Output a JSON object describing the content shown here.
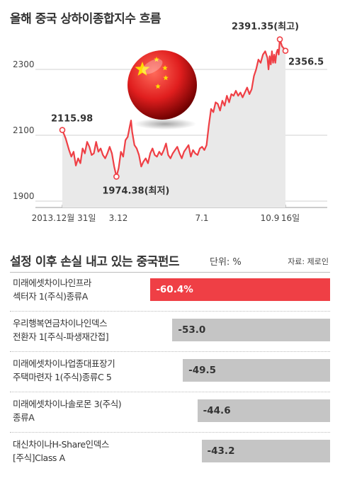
{
  "header": {
    "chart_title": "올해 중국 상하이종합지수 흐름",
    "bar_title": "설정 이후 손실 내고 있는 중국펀드",
    "unit": "단위: %",
    "source": "자료: 제로인"
  },
  "colors": {
    "line": "#ef3f45",
    "highlight_bar": "#ef3f45",
    "bar": "#c5c5c5",
    "area_fill": "#e9e9e9"
  },
  "icons": {
    "flag_ball": "china-flag-ball-icon"
  },
  "chart_data": [
    {
      "type": "line",
      "title": "올해 중국 상하이종합지수 흐름",
      "y_ticks": [
        "2300",
        "2100",
        "1900"
      ],
      "ylim": [
        1900,
        2420
      ],
      "x_ticks": [
        {
          "label": "2013.12월 31일",
          "x": 0
        },
        {
          "label": "3.12",
          "x": 48
        },
        {
          "label": "7.1",
          "x": 125
        },
        {
          "label": "10.9",
          "x": 193
        },
        {
          "label": "16일",
          "x": 198
        }
      ],
      "x_domain": [
        0,
        198
      ],
      "grid": true,
      "series": [
        {
          "values": [
            [
              0,
              2115.98
            ],
            [
              3,
              2090
            ],
            [
              6,
              2055
            ],
            [
              8,
              2035
            ],
            [
              10,
              2050
            ],
            [
              12,
              2008
            ],
            [
              14,
              2030
            ],
            [
              16,
              2015
            ],
            [
              18,
              2060
            ],
            [
              20,
              2045
            ],
            [
              22,
              2080
            ],
            [
              24,
              2065
            ],
            [
              26,
              2040
            ],
            [
              28,
              2045
            ],
            [
              30,
              2080
            ],
            [
              32,
              2050
            ],
            [
              34,
              2060
            ],
            [
              36,
              2040
            ],
            [
              38,
              2030
            ],
            [
              40,
              2045
            ],
            [
              42,
              2065
            ],
            [
              44,
              2045
            ],
            [
              46,
              2005
            ],
            [
              48,
              1974.38
            ],
            [
              50,
              2000
            ],
            [
              52,
              2050
            ],
            [
              54,
              2035
            ],
            [
              56,
              2085
            ],
            [
              58,
              2095
            ],
            [
              60,
              2130
            ],
            [
              61,
              2145
            ],
            [
              62,
              2110
            ],
            [
              64,
              2070
            ],
            [
              66,
              2060
            ],
            [
              68,
              2040
            ],
            [
              70,
              2005
            ],
            [
              72,
              2020
            ],
            [
              74,
              2030
            ],
            [
              76,
              2015
            ],
            [
              78,
              2045
            ],
            [
              80,
              2060
            ],
            [
              82,
              2040
            ],
            [
              84,
              2035
            ],
            [
              86,
              2050
            ],
            [
              88,
              2040
            ],
            [
              90,
              2055
            ],
            [
              92,
              2075
            ],
            [
              94,
              2040
            ],
            [
              96,
              2030
            ],
            [
              98,
              2045
            ],
            [
              100,
              2055
            ],
            [
              102,
              2065
            ],
            [
              104,
              2045
            ],
            [
              106,
              2030
            ],
            [
              108,
              2050
            ],
            [
              110,
              2060
            ],
            [
              112,
              2070
            ],
            [
              114,
              2035
            ],
            [
              116,
              2055
            ],
            [
              118,
              2045
            ],
            [
              120,
              2040
            ],
            [
              122,
              2060
            ],
            [
              124,
              2065
            ],
            [
              126,
              2055
            ],
            [
              128,
              2070
            ],
            [
              130,
              2130
            ],
            [
              132,
              2180
            ],
            [
              134,
              2170
            ],
            [
              136,
              2200
            ],
            [
              138,
              2195
            ],
            [
              140,
              2175
            ],
            [
              142,
              2205
            ],
            [
              144,
              2190
            ],
            [
              146,
              2220
            ],
            [
              148,
              2200
            ],
            [
              150,
              2225
            ],
            [
              152,
              2220
            ],
            [
              154,
              2235
            ],
            [
              156,
              2220
            ],
            [
              158,
              2230
            ],
            [
              160,
              2215
            ],
            [
              162,
              2230
            ],
            [
              164,
              2245
            ],
            [
              166,
              2225
            ],
            [
              168,
              2240
            ],
            [
              170,
              2280
            ],
            [
              172,
              2300
            ],
            [
              174,
              2330
            ],
            [
              176,
              2320
            ],
            [
              178,
              2345
            ],
            [
              180,
              2355
            ],
            [
              182,
              2335
            ],
            [
              183,
              2300
            ],
            [
              184,
              2340
            ],
            [
              185,
              2315
            ],
            [
              186,
              2355
            ],
            [
              187,
              2320
            ],
            [
              188,
              2345
            ],
            [
              189,
              2320
            ],
            [
              190,
              2350
            ],
            [
              191,
              2360
            ],
            [
              192,
              2345
            ],
            [
              193,
              2391.35
            ],
            [
              195,
              2370
            ],
            [
              197,
              2362
            ],
            [
              198,
              2356.5
            ]
          ]
        }
      ],
      "annotations": [
        {
          "label": "2115.98",
          "x": 0,
          "y": 2115.98
        },
        {
          "label": "1974.38(최저)",
          "x": 48,
          "y": 1974.38
        },
        {
          "label": "2391.35(최고)",
          "x": 193,
          "y": 2391.35
        },
        {
          "label": "2356.5",
          "x": 198,
          "y": 2356.5
        }
      ]
    },
    {
      "type": "bar",
      "title": "설정 이후 손실 내고 있는 중국펀드",
      "unit": "단위: %",
      "categories": [
        [
          "미래에셋차이나인프라",
          "섹터자 1(주식)종류A"
        ],
        [
          "우리행복연금차이나인덱스",
          "전환자 1[주식-파생재간접]"
        ],
        [
          "미래에셋차이나업종대표장기",
          "주택마련자 1(주식)종류C 5"
        ],
        [
          "미래에셋차이나솔로몬 3(주식)",
          "종류A"
        ],
        [
          "대신차이나H-Share인덱스",
          "[주식]Class A"
        ]
      ],
      "values": [
        -60.4,
        -53.0,
        -49.5,
        -44.6,
        -43.2
      ],
      "labels": [
        "-60.4%",
        "-53.0",
        "-49.5",
        "-44.6",
        "-43.2"
      ],
      "highlight_index": 0
    }
  ]
}
